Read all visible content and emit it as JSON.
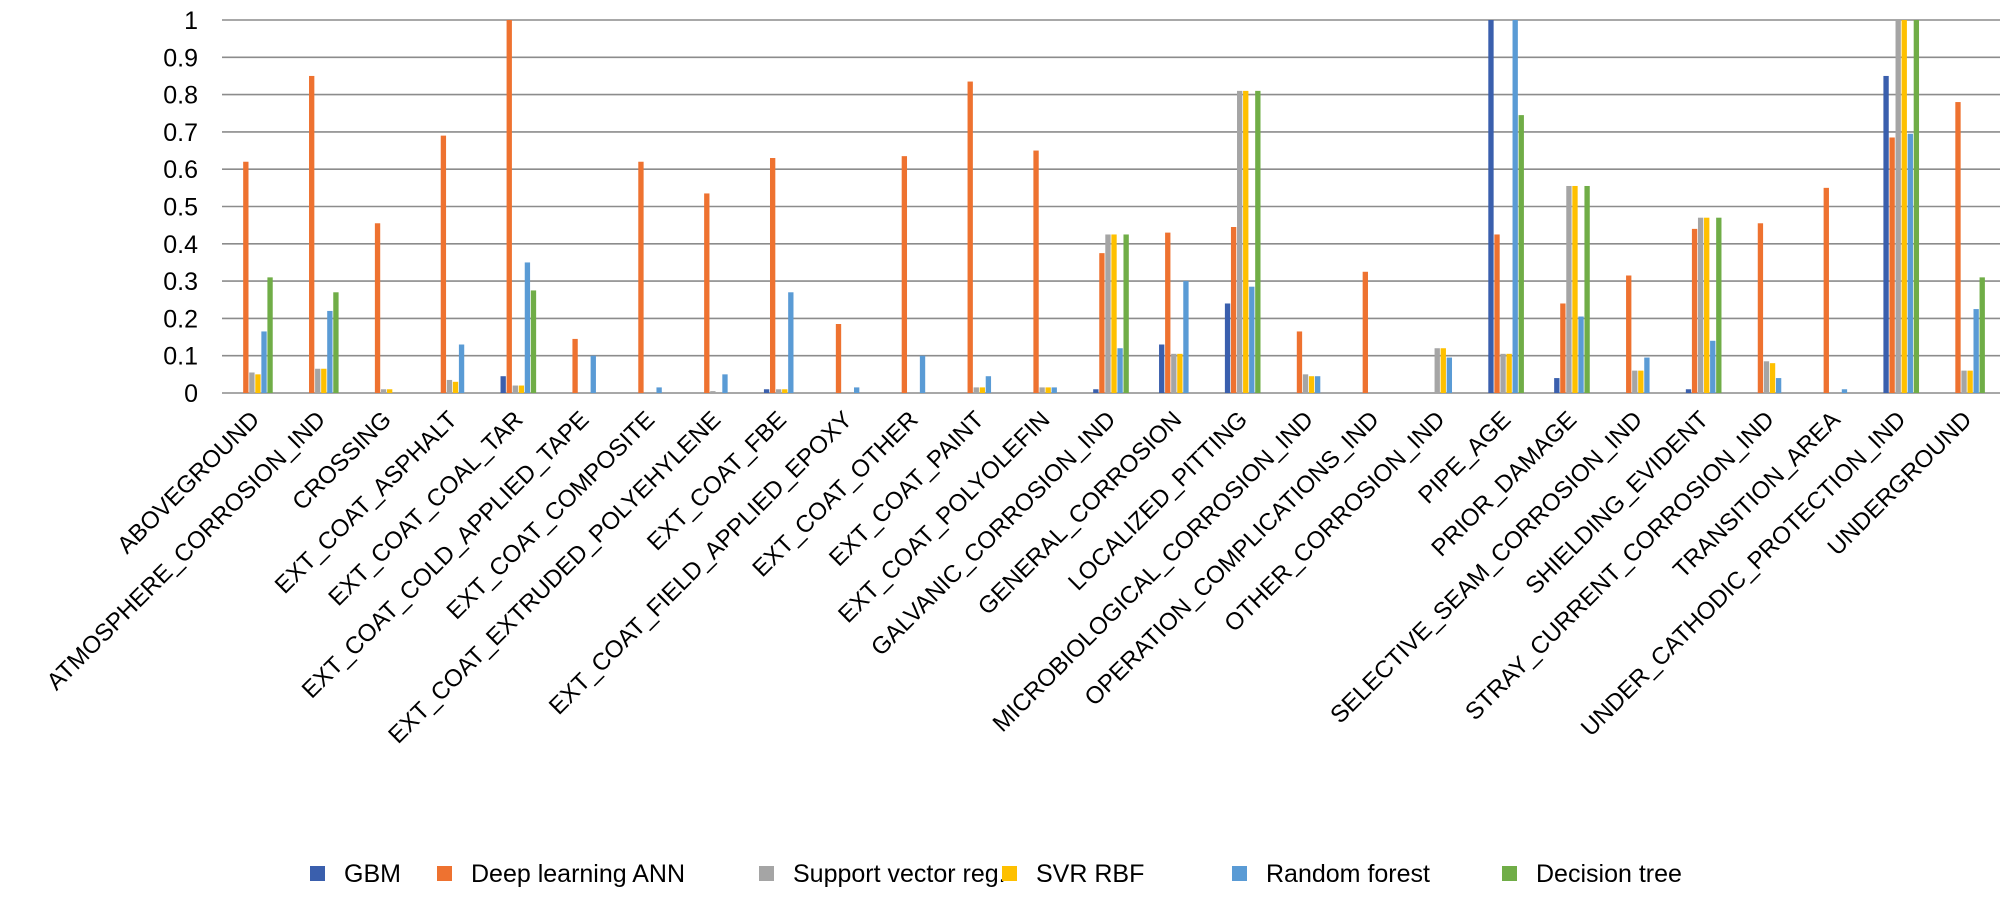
{
  "chart_data": {
    "type": "bar",
    "title": "",
    "xlabel": "",
    "ylabel": "",
    "ylim": [
      0,
      1
    ],
    "yticks": [
      "0",
      "0.1",
      "0.2",
      "0.3",
      "0.4",
      "0.5",
      "0.6",
      "0.7",
      "0.8",
      "0.9",
      "1"
    ],
    "grid": true,
    "legend_position": "bottom",
    "categories": [
      "ABOVEGROUND",
      "ATMOSPHERE_CORROSION_IND",
      "CROSSING",
      "EXT_COAT_ASPHALT",
      "EXT_COAT_COAL_TAR",
      "EXT_COAT_COLD_APPLIED_TAPE",
      "EXT_COAT_COMPOSITE",
      "EXT_COAT_EXTRUDED_POLYEHYLENE",
      "EXT_COAT_FBE",
      "EXT_COAT_FIELD_APPLIED_EPOXY",
      "EXT_COAT_OTHER",
      "EXT_COAT_PAINT",
      "EXT_COAT_POLYOLEFIN",
      "GALVANIC_CORROSION_IND",
      "GENERAL_CORROSION",
      "LOCALIZED_PITTING",
      "MICROBIOLOGICAL_CORROSION_IND",
      "OPERATION_COMPLICATIONS_IND",
      "OTHER_CORROSION_IND",
      "PIPE_AGE",
      "PRIOR_DAMAGE",
      "SELECTIVE_SEAM_CORROSION_IND",
      "SHIELDING_EVIDENT",
      "STRAY_CURRENT_CORROSION_IND",
      "TRANSITION_AREA",
      "UNDER_CATHODIC_PROTECTION_IND",
      "UNDERGROUND"
    ],
    "series": [
      {
        "name": "GBM",
        "color": "#3a5fad",
        "values": [
          0,
          0,
          0,
          0,
          0.045,
          0,
          0,
          0,
          0.01,
          0,
          0,
          0,
          0,
          0.01,
          0.13,
          0.24,
          0,
          0,
          0,
          1.0,
          0.04,
          0,
          0.01,
          0,
          0,
          0.85,
          0
        ]
      },
      {
        "name": "Deep learning ANN",
        "color": "#ee7230",
        "values": [
          0.62,
          0.85,
          0.455,
          0.69,
          1.0,
          0.145,
          0.62,
          0.535,
          0.63,
          0.185,
          0.635,
          0.835,
          0.65,
          0.375,
          0.43,
          0.445,
          0.165,
          0.325,
          0,
          0.425,
          0.24,
          0.315,
          0.44,
          0.455,
          0.55,
          0.685,
          0.78
        ]
      },
      {
        "name": "Support vector reg.",
        "color": "#a5a5a5",
        "values": [
          0.055,
          0.065,
          0.01,
          0.035,
          0.02,
          0,
          0,
          0.005,
          0.01,
          0,
          0,
          0.015,
          0.015,
          0.425,
          0.105,
          0.81,
          0.05,
          0,
          0.12,
          0.105,
          0.555,
          0.06,
          0.47,
          0.085,
          0,
          1.0,
          0.06
        ]
      },
      {
        "name": "SVR RBF",
        "color": "#fec000",
        "values": [
          0.05,
          0.065,
          0.01,
          0.03,
          0.02,
          0,
          0,
          0,
          0.01,
          0,
          0,
          0.015,
          0.015,
          0.425,
          0.105,
          0.81,
          0.045,
          0,
          0.12,
          0.105,
          0.555,
          0.06,
          0.47,
          0.08,
          0,
          1.0,
          0.06
        ]
      },
      {
        "name": "Random forest",
        "color": "#5a9bd5",
        "values": [
          0.165,
          0.22,
          0,
          0.13,
          0.35,
          0.1,
          0.015,
          0.05,
          0.27,
          0.015,
          0.1,
          0.045,
          0.015,
          0.12,
          0.3,
          0.285,
          0.045,
          0,
          0.095,
          1.0,
          0.205,
          0.095,
          0.14,
          0.04,
          0.01,
          0.695,
          0.225
        ]
      },
      {
        "name": "Decision tree",
        "color": "#70ad47",
        "values": [
          0.31,
          0.27,
          0,
          0,
          0.275,
          0,
          0,
          0,
          0,
          0,
          0,
          0,
          0,
          0.425,
          0,
          0.81,
          0,
          0,
          0,
          0.745,
          0.555,
          0,
          0.47,
          0,
          0,
          1.0,
          0.31
        ]
      }
    ]
  }
}
